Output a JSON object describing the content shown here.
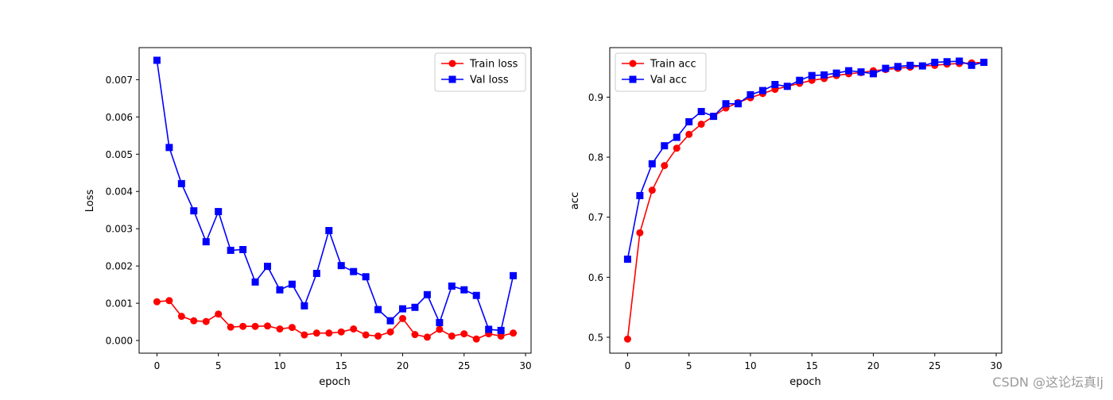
{
  "watermark": "CSDN @这论坛真lj",
  "colors": {
    "train": "#ff0000",
    "val": "#0000ff"
  },
  "chart_data": [
    {
      "type": "line",
      "title": "",
      "xlabel": "epoch",
      "ylabel": "Loss",
      "xlim": [
        -1.45,
        30.45
      ],
      "ylim": [
        -0.00034,
        0.00786
      ],
      "xticks": [
        0,
        5,
        10,
        15,
        20,
        25,
        30
      ],
      "xtick_labels": [
        "0",
        "5",
        "10",
        "15",
        "20",
        "25",
        "30"
      ],
      "yticks": [
        0,
        0.001,
        0.002,
        0.003,
        0.004,
        0.005,
        0.006,
        0.007
      ],
      "ytick_labels": [
        "0.000",
        "0.001",
        "0.002",
        "0.003",
        "0.004",
        "0.005",
        "0.006",
        "0.007"
      ],
      "legend_loc": "upper right",
      "x": [
        0,
        1,
        2,
        3,
        4,
        5,
        6,
        7,
        8,
        9,
        10,
        11,
        12,
        13,
        14,
        15,
        16,
        17,
        18,
        19,
        20,
        21,
        22,
        23,
        24,
        25,
        26,
        27,
        28,
        29
      ],
      "series": [
        {
          "name": "Train loss",
          "color": "#ff0000",
          "marker": "circle",
          "values": [
            0.00104,
            0.00107,
            0.00065,
            0.00053,
            0.00051,
            0.00071,
            0.00036,
            0.00038,
            0.00038,
            0.00039,
            0.00031,
            0.00035,
            0.00015,
            0.0002,
            0.0002,
            0.00023,
            0.00031,
            0.00015,
            0.00012,
            0.00023,
            0.00059,
            0.00016,
            9e-05,
            0.0003,
            0.00012,
            0.00018,
            4e-05,
            0.00018,
            0.00012,
            0.0002
          ]
        },
        {
          "name": "Val loss",
          "color": "#0000ff",
          "marker": "square",
          "values": [
            0.00752,
            0.00518,
            0.00421,
            0.00348,
            0.00265,
            0.00346,
            0.00242,
            0.00244,
            0.00157,
            0.00199,
            0.00136,
            0.00151,
            0.00093,
            0.0018,
            0.00295,
            0.00201,
            0.00185,
            0.00171,
            0.00083,
            0.00053,
            0.00085,
            0.00089,
            0.00123,
            0.00048,
            0.00146,
            0.00136,
            0.00121,
            0.0003,
            0.00027,
            0.00174
          ]
        }
      ]
    },
    {
      "type": "line",
      "title": "",
      "xlabel": "epoch",
      "ylabel": "acc",
      "xlim": [
        -1.45,
        30.45
      ],
      "ylim": [
        0.4735,
        0.9825
      ],
      "xticks": [
        0,
        5,
        10,
        15,
        20,
        25,
        30
      ],
      "xtick_labels": [
        "0",
        "5",
        "10",
        "15",
        "20",
        "25",
        "30"
      ],
      "yticks": [
        0.5,
        0.6,
        0.7,
        0.8,
        0.9
      ],
      "ytick_labels": [
        "0.5",
        "0.6",
        "0.7",
        "0.8",
        "0.9"
      ],
      "legend_loc": "upper left",
      "x": [
        0,
        1,
        2,
        3,
        4,
        5,
        6,
        7,
        8,
        9,
        10,
        11,
        12,
        13,
        14,
        15,
        16,
        17,
        18,
        19,
        20,
        21,
        22,
        23,
        24,
        25,
        26,
        27,
        28,
        29
      ],
      "series": [
        {
          "name": "Train acc",
          "color": "#ff0000",
          "marker": "circle",
          "values": [
            0.497,
            0.674,
            0.745,
            0.786,
            0.815,
            0.838,
            0.855,
            0.868,
            0.882,
            0.891,
            0.899,
            0.906,
            0.913,
            0.918,
            0.923,
            0.928,
            0.931,
            0.936,
            0.939,
            0.941,
            0.944,
            0.946,
            0.948,
            0.95,
            0.952,
            0.953,
            0.955,
            0.956,
            0.957,
            0.958
          ]
        },
        {
          "name": "Val acc",
          "color": "#0000ff",
          "marker": "square",
          "values": [
            0.63,
            0.736,
            0.789,
            0.819,
            0.833,
            0.859,
            0.876,
            0.868,
            0.889,
            0.889,
            0.904,
            0.911,
            0.921,
            0.918,
            0.928,
            0.936,
            0.937,
            0.94,
            0.944,
            0.942,
            0.939,
            0.948,
            0.951,
            0.953,
            0.952,
            0.958,
            0.959,
            0.96,
            0.953,
            0.958
          ]
        }
      ]
    }
  ]
}
